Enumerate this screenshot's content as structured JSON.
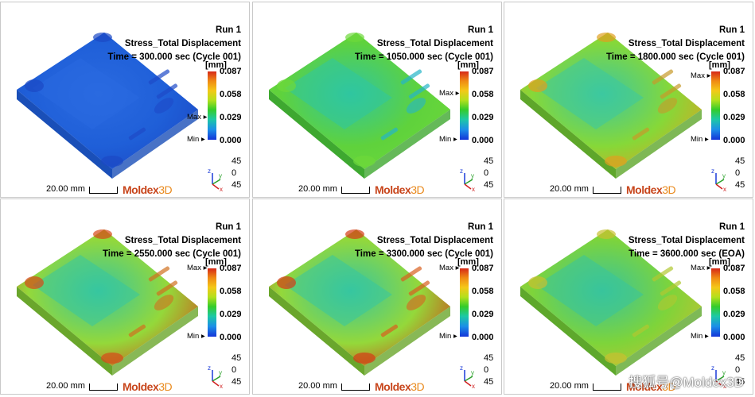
{
  "panels": [
    {
      "run": "Run 1",
      "title": "Stress_Total Displacement",
      "time": "Time = 300.000 sec (Cycle 001)"
    },
    {
      "run": "Run 1",
      "title": "Stress_Total Displacement",
      "time": "Time = 1050.000 sec (Cycle 001)"
    },
    {
      "run": "Run 1",
      "title": "Stress_Total Displacement",
      "time": "Time = 1800.000 sec (Cycle 001)"
    },
    {
      "run": "Run 1",
      "title": "Stress_Total Displacement",
      "time": "Time = 2550.000 sec (Cycle 001)"
    },
    {
      "run": "Run 1",
      "title": "Stress_Total Displacement",
      "time": "Time = 3300.000 sec (Cycle 001)"
    },
    {
      "run": "Run 1",
      "title": "Stress_Total Displacement",
      "time": "Time = 3600.000 sec (EOA)"
    }
  ],
  "legend": {
    "unit": "[mm]",
    "ticks": [
      "0.087",
      "0.058",
      "0.029",
      "0.000"
    ],
    "max_label": "Max",
    "min_label": "Min"
  },
  "axes": {
    "z": "z",
    "y": "y",
    "x": "x",
    "angles": [
      "45",
      "0",
      "45"
    ]
  },
  "scale_label": "20.00 mm",
  "logo": {
    "main": "Moldex",
    "suffix": "3D"
  },
  "watermark": "搜狐号@Moldex3D",
  "panel_fields": [
    {
      "top": "#1f5fd8",
      "mid": "#2a6ae0",
      "side": "#1a4fb8",
      "accent": "#1e4ac8",
      "hot": "#1b48c4"
    },
    {
      "top": "#5fd23c",
      "mid": "#2fc6a0",
      "side": "#3ea830",
      "accent": "#25b5c8",
      "hot": "#6ed83a"
    },
    {
      "top": "#86d838",
      "mid": "#3cc8a0",
      "side": "#5ea62a",
      "accent": "#c89a2a",
      "hot": "#e0a020"
    },
    {
      "top": "#94d83a",
      "mid": "#36c6a0",
      "side": "#6aa62c",
      "accent": "#d07020",
      "hot": "#d64a18"
    },
    {
      "top": "#94d83a",
      "mid": "#36c6a0",
      "side": "#6aa62c",
      "accent": "#d86020",
      "hot": "#d43c16"
    },
    {
      "top": "#7ed43a",
      "mid": "#38c49c",
      "side": "#5ea82c",
      "accent": "#b0c830",
      "hot": "#c8c030"
    }
  ],
  "max_marker_level": [
    0.32,
    0.67,
    0.93,
    1.0,
    1.0,
    1.0
  ],
  "min_marker_level": [
    0.0,
    0.0,
    0.0,
    0.0,
    0.0,
    0.0
  ]
}
